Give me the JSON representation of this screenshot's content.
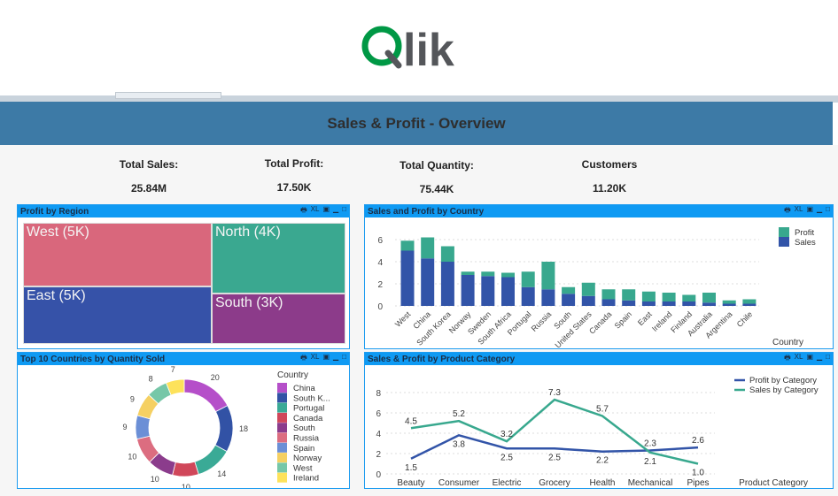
{
  "logo": {
    "text": "Qlik",
    "brand_color": "#009845"
  },
  "header": {
    "title": "Sales & Profit - Overview"
  },
  "kpis": [
    {
      "label": "Total Sales:",
      "value": "25.84M"
    },
    {
      "label": "Total Profit:",
      "value": "17.50K"
    },
    {
      "label": "Total Quantity:",
      "value": "75.44K"
    },
    {
      "label": "Customers",
      "value": "11.20K"
    }
  ],
  "panel_icons": [
    "print-icon",
    "excel-icon",
    "image-icon",
    "minimize-icon",
    "maximize-icon"
  ],
  "panel_icon_labels": {
    "print": "🖶",
    "excel": "XL",
    "image": "▣",
    "minimize": "▁",
    "maximize": "□"
  },
  "chart_data": [
    {
      "type": "treemap",
      "title": "Profit by Region",
      "items": [
        {
          "label": "West (5K)",
          "value": 5,
          "color": "#d9677c"
        },
        {
          "label": "East (5K)",
          "value": 5,
          "color": "#3652a8"
        },
        {
          "label": "North (4K)",
          "value": 4,
          "color": "#3aa890"
        },
        {
          "label": "South (3K)",
          "value": 3,
          "color": "#8c3b8a"
        }
      ]
    },
    {
      "type": "bar",
      "stacked": true,
      "title": "Sales and Profit by Country",
      "xlabel": "Country",
      "ylim": [
        0,
        7
      ],
      "yticks": [
        0,
        2,
        4,
        6
      ],
      "grid": true,
      "legend": "top-right",
      "categories": [
        "West",
        "China",
        "South Korea",
        "Norway",
        "Sweden",
        "South Africa",
        "Portugal",
        "Russia",
        "South",
        "United States",
        "Canada",
        "Spain",
        "East",
        "Ireland",
        "Finland",
        "Australia",
        "Argentina",
        "Chile"
      ],
      "series": [
        {
          "name": "Sales",
          "color": "#3254a8",
          "values": [
            5.0,
            4.3,
            4.0,
            2.8,
            2.7,
            2.6,
            1.7,
            1.5,
            1.1,
            0.9,
            0.6,
            0.5,
            0.4,
            0.4,
            0.4,
            0.3,
            0.2,
            0.2
          ]
        },
        {
          "name": "Profit",
          "color": "#38a88e",
          "values": [
            0.9,
            1.9,
            1.4,
            0.3,
            0.4,
            0.4,
            1.4,
            2.5,
            0.6,
            1.2,
            0.9,
            1.0,
            0.9,
            0.8,
            0.6,
            0.9,
            0.3,
            0.4
          ]
        }
      ]
    },
    {
      "type": "pie",
      "donut": true,
      "title": "Top 10 Countries by Quantity Sold",
      "legend_title": "Country",
      "legend": "right",
      "labels": [
        "China",
        "South K...",
        "Portugal",
        "Canada",
        "South",
        "Russia",
        "Spain",
        "Norway",
        "West",
        "Ireland"
      ],
      "values": [
        20,
        18,
        14,
        10,
        10,
        10,
        9,
        9,
        8,
        7
      ],
      "colors": [
        "#b54fc9",
        "#3252a5",
        "#3aaa96",
        "#d0475a",
        "#8b3c8c",
        "#dc6d80",
        "#6b8fd6",
        "#f5d062",
        "#76c7a8",
        "#fde25b"
      ]
    },
    {
      "type": "line",
      "title": "Sales & Profit by Product Category",
      "xlabel": "Product Category",
      "ylim": [
        0,
        8
      ],
      "yticks": [
        0,
        2,
        4,
        6,
        8
      ],
      "grid": true,
      "legend": "top-right",
      "categories": [
        "Beauty",
        "Consumer",
        "Electric",
        "Grocery",
        "Health",
        "Mechanical",
        "Pipes"
      ],
      "series": [
        {
          "name": "Profit by Category",
          "color": "#3254a8",
          "values": [
            1.5,
            3.8,
            2.5,
            2.5,
            2.2,
            2.3,
            2.6
          ]
        },
        {
          "name": "Sales by Category",
          "color": "#38a88e",
          "values": [
            4.5,
            5.2,
            3.2,
            7.3,
            5.7,
            2.1,
            1.0
          ]
        }
      ]
    }
  ]
}
